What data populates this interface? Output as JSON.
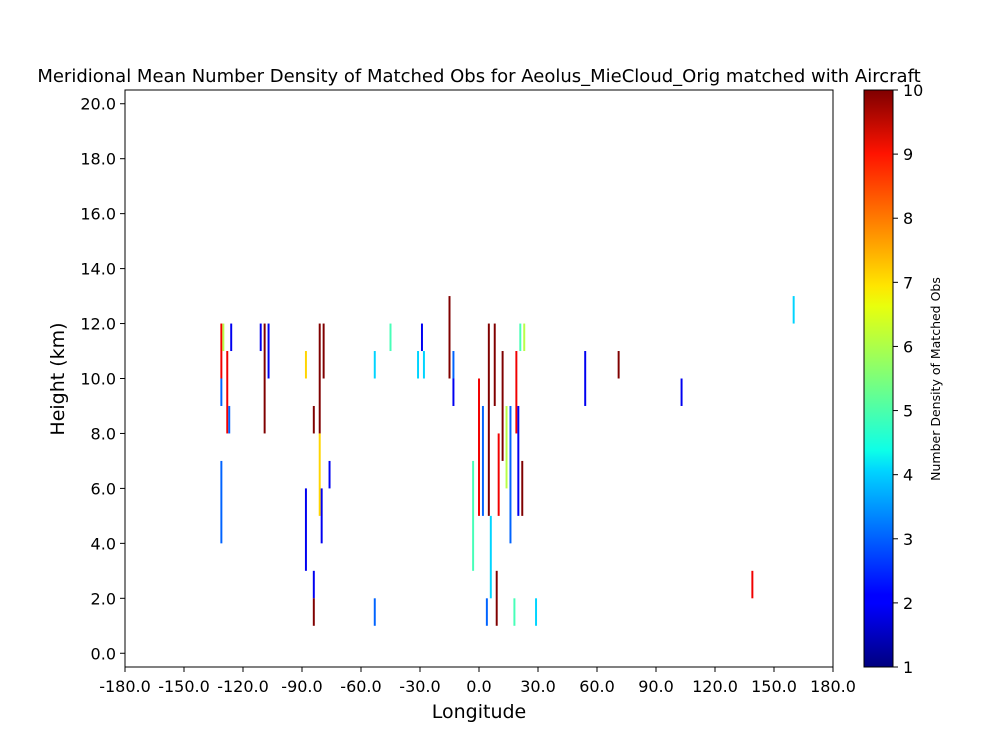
{
  "chart_data": {
    "type": "heatmap",
    "title": "Meridional Mean Number Density of Matched Obs for Aeolus_MieCloud_Orig matched with Aircraft",
    "xlabel": "Longitude",
    "ylabel": "Height (km)",
    "xlim": [
      -180,
      180
    ],
    "ylim": [
      -0.5,
      20.5
    ],
    "x_ticks": [
      -180,
      -150,
      -120,
      -90,
      -60,
      -30,
      0,
      30,
      60,
      90,
      120,
      150,
      180
    ],
    "x_tick_labels": [
      "-180.0",
      "-150.0",
      "-120.0",
      "-90.0",
      "-60.0",
      "-30.0",
      "0.0",
      "30.0",
      "60.0",
      "90.0",
      "120.0",
      "150.0",
      "180.0"
    ],
    "y_ticks": [
      0,
      2,
      4,
      6,
      8,
      10,
      12,
      14,
      16,
      18,
      20
    ],
    "y_tick_labels": [
      "0.0",
      "2.0",
      "4.0",
      "6.0",
      "8.0",
      "10.0",
      "12.0",
      "14.0",
      "16.0",
      "18.0",
      "20.0"
    ],
    "colorbar": {
      "label": "Number Density of Matched Obs",
      "colormap": "jet",
      "range": [
        1,
        10
      ],
      "ticks": [
        1,
        2,
        3,
        4,
        5,
        6,
        7,
        8,
        9,
        10
      ],
      "tick_labels": [
        "1",
        "2",
        "3",
        "4",
        "5",
        "6",
        "7",
        "8",
        "9",
        "10"
      ]
    },
    "grid": false,
    "cells": [
      {
        "lon": -131,
        "h0": 10,
        "h1": 12,
        "v": 9
      },
      {
        "lon": -131,
        "h0": 9,
        "h1": 10,
        "v": 3
      },
      {
        "lon": -130,
        "h0": 11,
        "h1": 12,
        "v": 6
      },
      {
        "lon": -128,
        "h0": 8,
        "h1": 11,
        "v": 9
      },
      {
        "lon": -127,
        "h0": 8,
        "h1": 9,
        "v": 3
      },
      {
        "lon": -126,
        "h0": 11,
        "h1": 12,
        "v": 2
      },
      {
        "lon": -131,
        "h0": 4,
        "h1": 7,
        "v": 3
      },
      {
        "lon": -111,
        "h0": 11,
        "h1": 12,
        "v": 2
      },
      {
        "lon": -109,
        "h0": 8,
        "h1": 12,
        "v": 10
      },
      {
        "lon": -107,
        "h0": 10,
        "h1": 12,
        "v": 2
      },
      {
        "lon": -88,
        "h0": 10,
        "h1": 11,
        "v": 7
      },
      {
        "lon": -88,
        "h0": 3,
        "h1": 6,
        "v": 2
      },
      {
        "lon": -84,
        "h0": 8,
        "h1": 9,
        "v": 10
      },
      {
        "lon": -84,
        "h0": 2,
        "h1": 3,
        "v": 2
      },
      {
        "lon": -84,
        "h0": 1,
        "h1": 2,
        "v": 10
      },
      {
        "lon": -81,
        "h0": 8,
        "h1": 12,
        "v": 10
      },
      {
        "lon": -81,
        "h0": 5,
        "h1": 8,
        "v": 7
      },
      {
        "lon": -79,
        "h0": 10,
        "h1": 12,
        "v": 10
      },
      {
        "lon": -80,
        "h0": 4,
        "h1": 6,
        "v": 2
      },
      {
        "lon": -76,
        "h0": 6,
        "h1": 7,
        "v": 2
      },
      {
        "lon": -53,
        "h0": 10,
        "h1": 11,
        "v": 4
      },
      {
        "lon": -53,
        "h0": 1,
        "h1": 2,
        "v": 3
      },
      {
        "lon": -45,
        "h0": 11,
        "h1": 12,
        "v": 5
      },
      {
        "lon": -31,
        "h0": 10,
        "h1": 11,
        "v": 4
      },
      {
        "lon": -29,
        "h0": 11,
        "h1": 12,
        "v": 2
      },
      {
        "lon": -28,
        "h0": 10,
        "h1": 11,
        "v": 4
      },
      {
        "lon": -15,
        "h0": 10,
        "h1": 13,
        "v": 10
      },
      {
        "lon": -13,
        "h0": 10,
        "h1": 11,
        "v": 3
      },
      {
        "lon": -13,
        "h0": 9,
        "h1": 10,
        "v": 2
      },
      {
        "lon": -3,
        "h0": 3,
        "h1": 7,
        "v": 5
      },
      {
        "lon": 0,
        "h0": 5,
        "h1": 10,
        "v": 9
      },
      {
        "lon": 2,
        "h0": 5,
        "h1": 9,
        "v": 3
      },
      {
        "lon": 4,
        "h0": 1,
        "h1": 2,
        "v": 3
      },
      {
        "lon": 5,
        "h0": 5,
        "h1": 12,
        "v": 10
      },
      {
        "lon": 6,
        "h0": 2,
        "h1": 5,
        "v": 4
      },
      {
        "lon": 8,
        "h0": 9,
        "h1": 12,
        "v": 10
      },
      {
        "lon": 9,
        "h0": 1,
        "h1": 3,
        "v": 10
      },
      {
        "lon": 10,
        "h0": 5,
        "h1": 8,
        "v": 9
      },
      {
        "lon": 12,
        "h0": 7,
        "h1": 11,
        "v": 10
      },
      {
        "lon": 14,
        "h0": 6,
        "h1": 9,
        "v": 6
      },
      {
        "lon": 16,
        "h0": 4,
        "h1": 9,
        "v": 3
      },
      {
        "lon": 18,
        "h0": 1,
        "h1": 2,
        "v": 5
      },
      {
        "lon": 19,
        "h0": 8,
        "h1": 11,
        "v": 9
      },
      {
        "lon": 20,
        "h0": 5,
        "h1": 9,
        "v": 2
      },
      {
        "lon": 21,
        "h0": 11,
        "h1": 12,
        "v": 5
      },
      {
        "lon": 22,
        "h0": 5,
        "h1": 7,
        "v": 10
      },
      {
        "lon": 23,
        "h0": 11,
        "h1": 12,
        "v": 6
      },
      {
        "lon": 29,
        "h0": 1,
        "h1": 2,
        "v": 4
      },
      {
        "lon": 54,
        "h0": 9,
        "h1": 11,
        "v": 2
      },
      {
        "lon": 71,
        "h0": 10,
        "h1": 11,
        "v": 10
      },
      {
        "lon": 103,
        "h0": 9,
        "h1": 10,
        "v": 2
      },
      {
        "lon": 139,
        "h0": 2,
        "h1": 3,
        "v": 9
      },
      {
        "lon": 160,
        "h0": 12,
        "h1": 13,
        "v": 4
      }
    ]
  }
}
